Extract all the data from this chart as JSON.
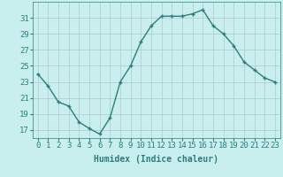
{
  "x": [
    0,
    1,
    2,
    3,
    4,
    5,
    6,
    7,
    8,
    9,
    10,
    11,
    12,
    13,
    14,
    15,
    16,
    17,
    18,
    19,
    20,
    21,
    22,
    23
  ],
  "y": [
    24.0,
    22.5,
    20.5,
    20.0,
    18.0,
    17.2,
    16.5,
    18.5,
    23.0,
    25.0,
    28.0,
    30.0,
    31.2,
    31.2,
    31.2,
    31.5,
    32.0,
    30.0,
    29.0,
    27.5,
    25.5,
    24.5,
    23.5,
    23.0
  ],
  "line_color": "#2d7d7d",
  "marker": "+",
  "markersize": 3.5,
  "markeredgewidth": 1.0,
  "bg_color": "#c8eeee",
  "grid_color": "#b0c8c8",
  "xlabel": "Humidex (Indice chaleur)",
  "yticks": [
    17,
    19,
    21,
    23,
    25,
    27,
    29,
    31
  ],
  "xticks": [
    0,
    1,
    2,
    3,
    4,
    5,
    6,
    7,
    8,
    9,
    10,
    11,
    12,
    13,
    14,
    15,
    16,
    17,
    18,
    19,
    20,
    21,
    22,
    23
  ],
  "ylim": [
    16.0,
    33.0
  ],
  "xlim": [
    -0.5,
    23.5
  ],
  "xlabel_fontsize": 7,
  "tick_fontsize": 6.5,
  "linewidth": 1.0
}
